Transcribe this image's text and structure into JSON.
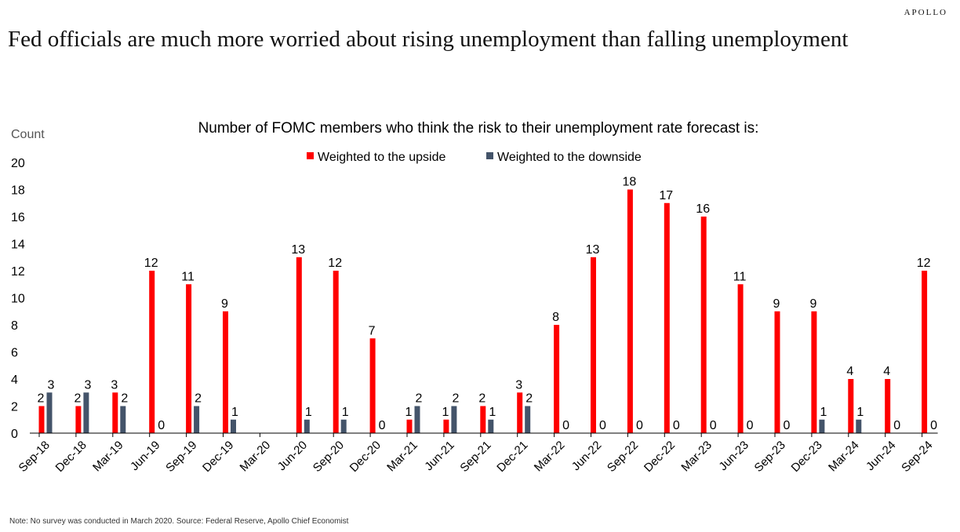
{
  "brand": "APOLLO",
  "headline": "Fed officials are much more worried about rising unemployment than falling unemployment",
  "footnote": "Note: No survey was conducted in March 2020. Source: Federal Reserve, Apollo Chief Economist",
  "colors": {
    "upside": "#ff0000",
    "downside": "#44546a",
    "axis": "#000000"
  },
  "chart_data": {
    "type": "bar",
    "title": "Number of FOMC members who think the risk to their unemployment rate forecast is:",
    "ylabel": "Count",
    "xlabel": "",
    "ylim": [
      0,
      20
    ],
    "yticks": [
      0,
      2,
      4,
      6,
      8,
      10,
      12,
      14,
      16,
      18,
      20
    ],
    "grid": false,
    "legend_position": "top-center",
    "categories": [
      "Sep-18",
      "Dec-18",
      "Mar-19",
      "Jun-19",
      "Sep-19",
      "Dec-19",
      "Mar-20",
      "Jun-20",
      "Sep-20",
      "Dec-20",
      "Mar-21",
      "Jun-21",
      "Sep-21",
      "Dec-21",
      "Mar-22",
      "Jun-22",
      "Sep-22",
      "Dec-22",
      "Mar-23",
      "Jun-23",
      "Sep-23",
      "Dec-23",
      "Mar-24",
      "Jun-24",
      "Sep-24"
    ],
    "series": [
      {
        "name": "Weighted to the upside",
        "values": [
          2,
          2,
          3,
          12,
          11,
          9,
          null,
          13,
          12,
          7,
          1,
          1,
          2,
          3,
          8,
          13,
          18,
          17,
          16,
          11,
          9,
          9,
          4,
          4,
          12
        ]
      },
      {
        "name": "Weighted to the downside",
        "values": [
          3,
          3,
          2,
          0,
          2,
          1,
          null,
          1,
          1,
          0,
          2,
          2,
          1,
          2,
          0,
          0,
          0,
          0,
          0,
          0,
          0,
          1,
          1,
          0,
          0
        ]
      }
    ]
  }
}
